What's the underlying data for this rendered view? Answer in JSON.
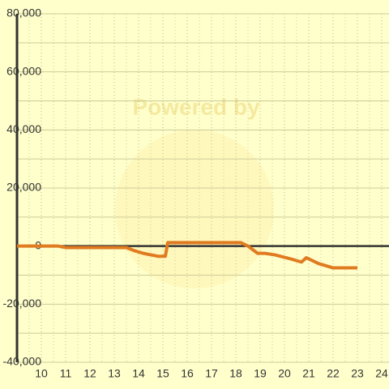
{
  "chart_data": {
    "type": "line",
    "watermark": "Powered by",
    "x": [
      9,
      10.7,
      11,
      13.5,
      13.8,
      14.2,
      14.5,
      14.8,
      15.1,
      15.2,
      18.2,
      18.5,
      18.9,
      19.2,
      19.6,
      20.3,
      20.7,
      20.9,
      21.4,
      22,
      23
    ],
    "series": [
      {
        "color": "#e07b20",
        "values": [
          0,
          0,
          -500,
          -500,
          -1500,
          -2500,
          -3000,
          -3500,
          -3500,
          1200,
          1200,
          0,
          -2500,
          -2500,
          -3000,
          -4500,
          -5500,
          -4000,
          -6000,
          -7500,
          -7500
        ]
      }
    ],
    "xlim": [
      9,
      24.3
    ],
    "xticks": [
      10,
      11,
      12,
      13,
      14,
      15,
      16,
      17,
      18,
      19,
      20,
      21,
      22,
      23,
      24
    ],
    "xminorticks": [
      9.5,
      10.5,
      11.5,
      12.5,
      13.5,
      14.5,
      15.5,
      16.5,
      17.5,
      18.5,
      19.5,
      20.5,
      21.5,
      22.5,
      23.5
    ],
    "ylim": [
      -40000,
      80000
    ],
    "yticks": [
      {
        "value": -40000,
        "label": "-40,000"
      },
      {
        "value": -20000,
        "label": "-20,000"
      },
      0,
      {
        "value": 20000,
        "label": "20,000"
      },
      {
        "value": 40000,
        "label": "40,000"
      },
      {
        "value": 60000,
        "label": "60,000"
      },
      {
        "value": 80000,
        "label": "80,000"
      }
    ],
    "yminorticks": [
      -30000,
      -10000,
      10000,
      30000,
      50000,
      70000
    ],
    "grid": true
  }
}
